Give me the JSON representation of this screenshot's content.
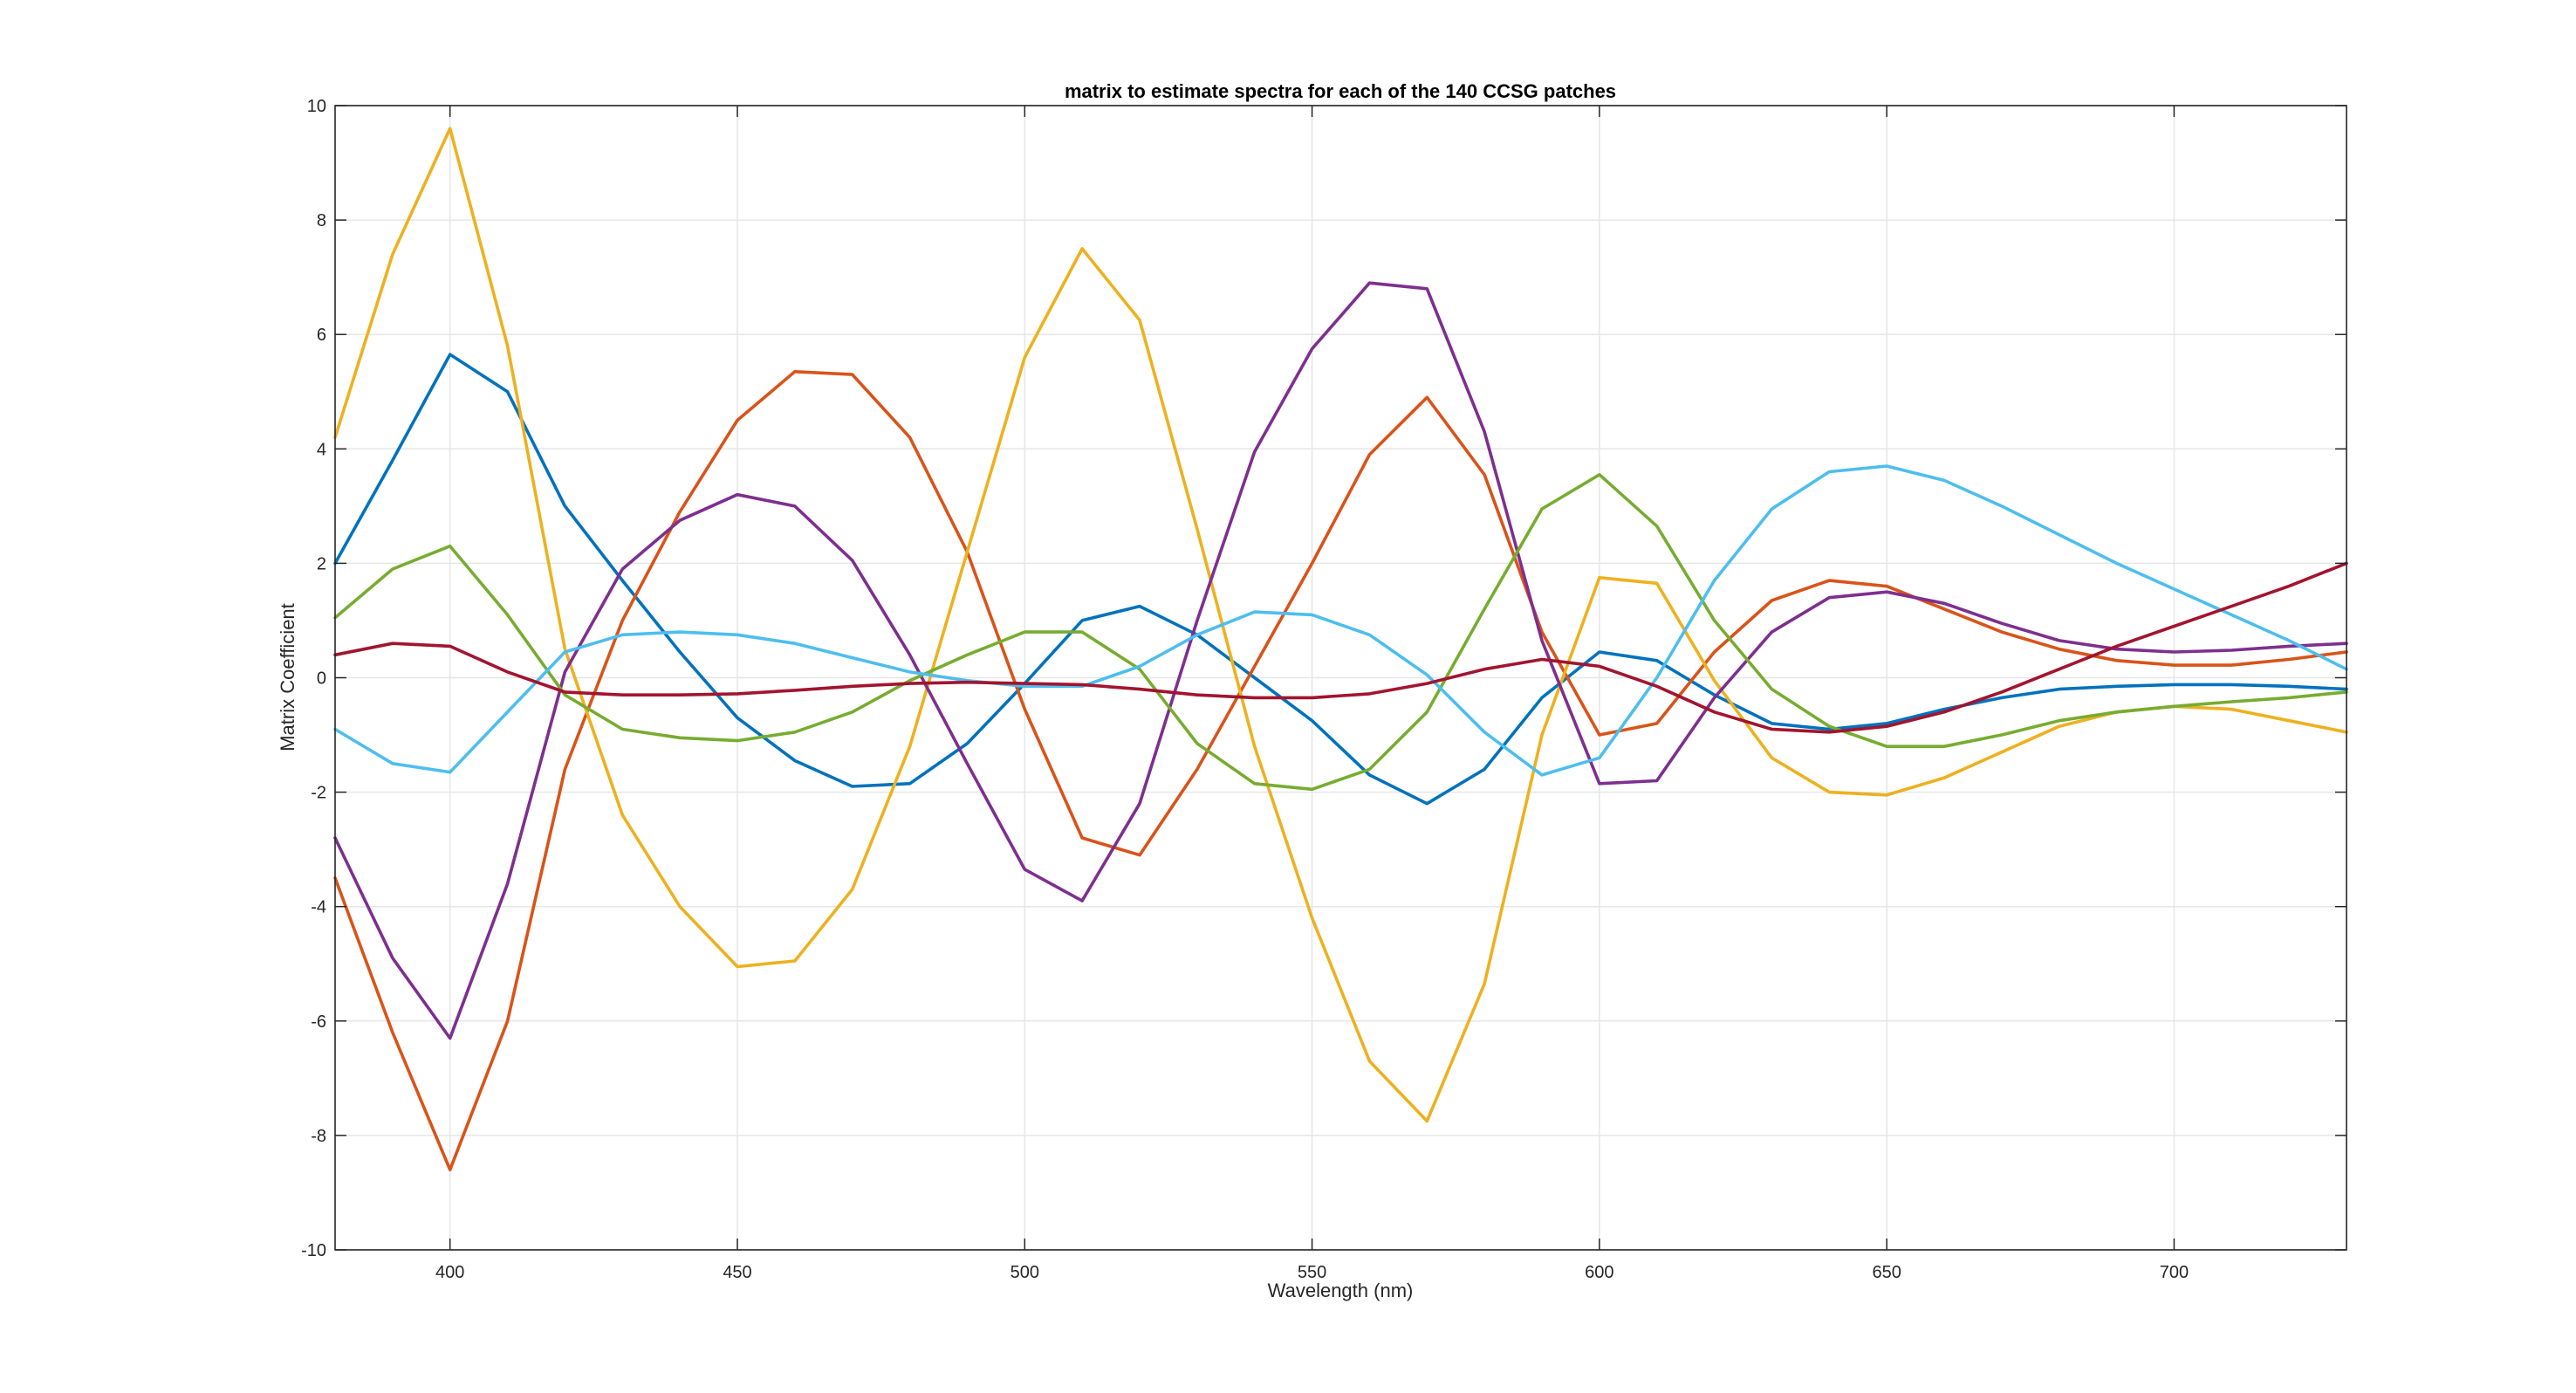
{
  "chart_data": {
    "type": "line",
    "title": "matrix to estimate spectra for each of the 140 CCSG patches",
    "xlabel": "Wavelength (nm)",
    "ylabel": "Matrix Coefficient",
    "xlim": [
      380,
      730
    ],
    "ylim": [
      -10,
      10
    ],
    "xticks": [
      400,
      450,
      500,
      550,
      600,
      650,
      700
    ],
    "yticks": [
      -10,
      -8,
      -6,
      -4,
      -2,
      0,
      2,
      4,
      6,
      8,
      10
    ],
    "grid": true,
    "box": true,
    "x": [
      380,
      390,
      400,
      410,
      420,
      430,
      440,
      450,
      460,
      470,
      480,
      490,
      500,
      510,
      520,
      530,
      540,
      550,
      560,
      570,
      580,
      590,
      600,
      610,
      620,
      630,
      640,
      650,
      660,
      670,
      680,
      690,
      700,
      710,
      720,
      730
    ],
    "series": [
      {
        "color": "#0072BD",
        "values": [
          2.0,
          3.8,
          5.65,
          5.0,
          3.0,
          1.7,
          0.45,
          -0.7,
          -1.45,
          -1.9,
          -1.85,
          -1.15,
          -0.1,
          1.0,
          1.25,
          0.75,
          0.0,
          -0.75,
          -1.7,
          -2.2,
          -1.6,
          -0.35,
          0.45,
          0.3,
          -0.3,
          -0.8,
          -0.9,
          -0.8,
          -0.55,
          -0.35,
          -0.2,
          -0.15,
          -0.12,
          -0.12,
          -0.15,
          -0.2
        ]
      },
      {
        "color": "#D95319",
        "values": [
          -3.5,
          -6.2,
          -8.6,
          -6.0,
          -1.6,
          1.0,
          2.9,
          4.5,
          5.35,
          5.3,
          4.2,
          2.2,
          -0.55,
          -2.8,
          -3.1,
          -1.6,
          0.2,
          2.0,
          3.9,
          4.9,
          3.55,
          0.8,
          -1.0,
          -0.8,
          0.45,
          1.35,
          1.7,
          1.6,
          1.2,
          0.8,
          0.5,
          0.3,
          0.22,
          0.22,
          0.32,
          0.45
        ]
      },
      {
        "color": "#EDB120",
        "values": [
          4.2,
          7.4,
          9.6,
          5.8,
          0.5,
          -2.4,
          -4.0,
          -5.05,
          -4.95,
          -3.7,
          -1.2,
          2.2,
          5.6,
          7.5,
          6.25,
          2.6,
          -1.2,
          -4.2,
          -6.7,
          -7.75,
          -5.35,
          -1.0,
          1.75,
          1.65,
          -0.05,
          -1.4,
          -2.0,
          -2.05,
          -1.75,
          -1.3,
          -0.85,
          -0.6,
          -0.5,
          -0.55,
          -0.75,
          -0.95
        ]
      },
      {
        "color": "#7E2F8E",
        "values": [
          -2.8,
          -4.9,
          -6.3,
          -3.6,
          0.1,
          1.9,
          2.75,
          3.2,
          3.0,
          2.05,
          0.4,
          -1.5,
          -3.35,
          -3.9,
          -2.2,
          1.0,
          3.95,
          5.75,
          6.9,
          6.8,
          4.3,
          0.65,
          -1.85,
          -1.8,
          -0.35,
          0.8,
          1.4,
          1.5,
          1.3,
          0.95,
          0.65,
          0.5,
          0.45,
          0.48,
          0.55,
          0.6
        ]
      },
      {
        "color": "#77AC30",
        "values": [
          1.05,
          1.9,
          2.3,
          1.1,
          -0.3,
          -0.9,
          -1.05,
          -1.1,
          -0.95,
          -0.6,
          -0.05,
          0.4,
          0.8,
          0.8,
          0.15,
          -1.15,
          -1.85,
          -1.95,
          -1.6,
          -0.6,
          1.2,
          2.95,
          3.55,
          2.65,
          1.0,
          -0.2,
          -0.85,
          -1.2,
          -1.2,
          -1.0,
          -0.75,
          -0.6,
          -0.5,
          -0.42,
          -0.35,
          -0.25
        ]
      },
      {
        "color": "#4DBEEE",
        "values": [
          -0.9,
          -1.5,
          -1.65,
          -0.6,
          0.45,
          0.75,
          0.8,
          0.75,
          0.6,
          0.35,
          0.1,
          -0.05,
          -0.15,
          -0.15,
          0.2,
          0.75,
          1.15,
          1.1,
          0.75,
          0.05,
          -0.95,
          -1.7,
          -1.4,
          0.0,
          1.7,
          2.95,
          3.6,
          3.7,
          3.45,
          3.0,
          2.5,
          2.0,
          1.55,
          1.1,
          0.65,
          0.15
        ]
      },
      {
        "color": "#A2142F",
        "values": [
          0.4,
          0.6,
          0.55,
          0.1,
          -0.25,
          -0.3,
          -0.3,
          -0.28,
          -0.22,
          -0.15,
          -0.1,
          -0.08,
          -0.1,
          -0.12,
          -0.2,
          -0.3,
          -0.35,
          -0.35,
          -0.28,
          -0.1,
          0.15,
          0.32,
          0.2,
          -0.15,
          -0.6,
          -0.9,
          -0.95,
          -0.85,
          -0.6,
          -0.25,
          0.15,
          0.55,
          0.9,
          1.25,
          1.6,
          2.0
        ]
      }
    ]
  }
}
